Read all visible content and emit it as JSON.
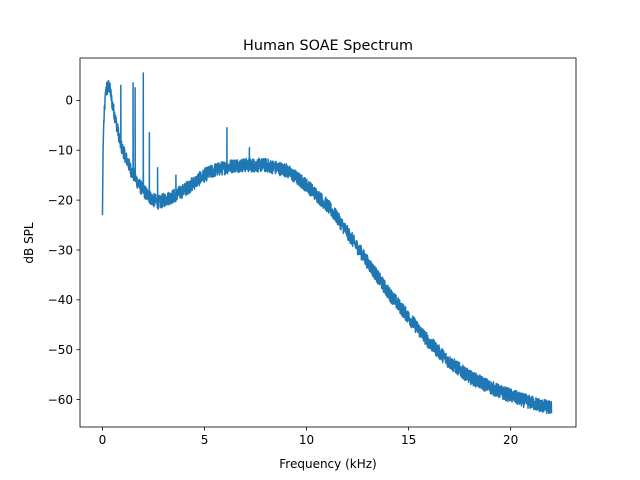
{
  "chart_data": {
    "type": "line",
    "title": "Human SOAE Spectrum",
    "xlabel": "Frequency (kHz)",
    "ylabel": "dB SPL",
    "xlim": [
      -1.1,
      23.2
    ],
    "ylim": [
      -65.5,
      8.5
    ],
    "xticks": [
      0,
      5,
      10,
      15,
      20
    ],
    "yticks": [
      0,
      -10,
      -20,
      -30,
      -40,
      -50,
      -60
    ],
    "grid": false,
    "legend": "none",
    "series": [
      {
        "color": "#1f77b4",
        "trend": {
          "x": [
            0.0,
            0.03,
            0.06,
            0.1,
            0.15,
            0.2,
            0.25,
            0.3,
            0.35,
            0.4,
            0.45,
            0.5,
            0.6,
            0.7,
            0.8,
            0.9,
            1.0,
            1.2,
            1.4,
            1.6,
            1.8,
            2.0,
            2.2,
            2.5,
            2.8,
            3.0,
            3.3,
            3.6,
            4.0,
            4.5,
            5.0,
            5.5,
            6.0,
            6.5,
            7.0,
            7.5,
            8.0,
            8.5,
            9.0,
            9.5,
            10.0,
            10.5,
            11.0,
            11.5,
            12.0,
            12.5,
            13.0,
            13.5,
            14.0,
            14.5,
            15.0,
            15.5,
            16.0,
            16.5,
            17.0,
            17.5,
            18.0,
            18.5,
            19.0,
            19.5,
            20.0,
            20.5,
            21.0,
            21.5,
            22.0
          ],
          "y": [
            -23,
            -10,
            -5,
            -2,
            1,
            3,
            2,
            3,
            2.5,
            1.5,
            0,
            -1,
            -3,
            -5,
            -7,
            -9,
            -10,
            -12,
            -14,
            -15.5,
            -17,
            -18,
            -19,
            -20,
            -20.5,
            -20,
            -19.5,
            -19,
            -18,
            -16.5,
            -15,
            -14,
            -13.5,
            -13,
            -13,
            -13,
            -13,
            -13.5,
            -14,
            -15.5,
            -17,
            -19,
            -21,
            -23.5,
            -26.5,
            -29.5,
            -32.5,
            -35.5,
            -38.5,
            -41,
            -43.5,
            -46,
            -48.5,
            -50.5,
            -52.5,
            -54,
            -55.5,
            -56.5,
            -57.5,
            -58.5,
            -59.2,
            -60,
            -60.6,
            -61.2,
            -61.7
          ]
        },
        "noise_band_db": 1.4,
        "peaks": [
          {
            "x": 0.9,
            "y": 3.0
          },
          {
            "x": 1.5,
            "y": 3.5
          },
          {
            "x": 1.6,
            "y": 2.5
          },
          {
            "x": 2.0,
            "y": 5.5
          },
          {
            "x": 2.3,
            "y": -6.5
          },
          {
            "x": 2.7,
            "y": -13.5
          },
          {
            "x": 3.6,
            "y": -15.0
          },
          {
            "x": 6.1,
            "y": -5.5
          },
          {
            "x": 7.2,
            "y": -9.5
          }
        ]
      }
    ]
  }
}
